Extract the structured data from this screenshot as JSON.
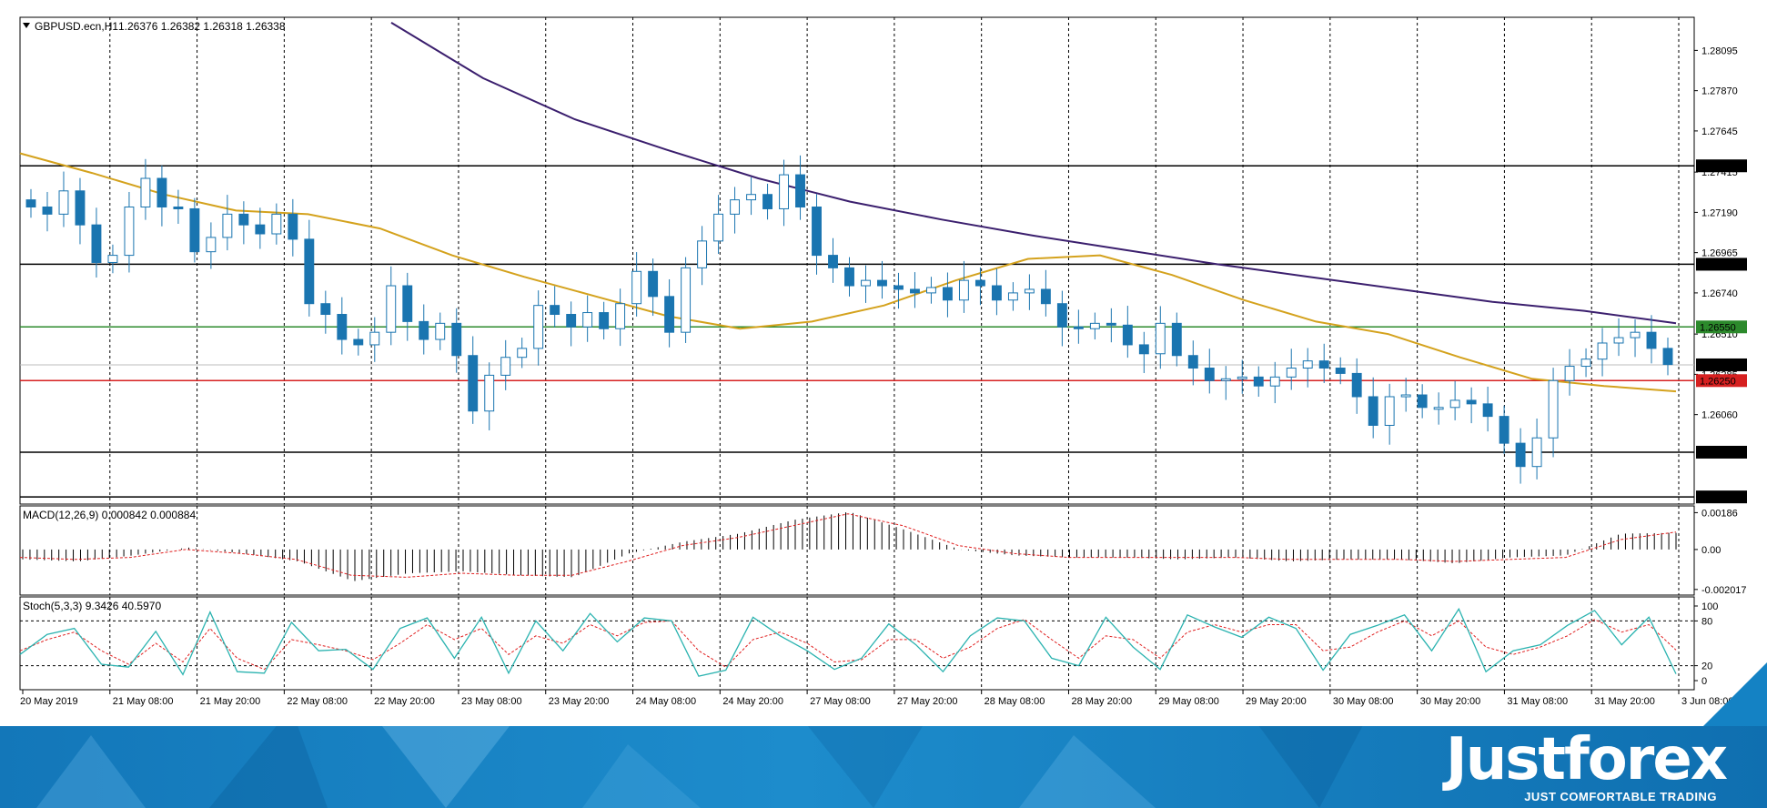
{
  "header": {
    "symbol": "GBPUSD.ecn,H1",
    "ohlc": "1.26376 1.26382 1.26318 1.26338"
  },
  "macd_header": {
    "label": "MACD(12,26,9) 0.000842 0.000884"
  },
  "stoch_header": {
    "label": "Stoch(5,3,3) 9.3426 40.5970"
  },
  "colors": {
    "candle": "#1a75b0",
    "ma_fast": "#d4a21d",
    "ma_slow": "#3b1f6e",
    "level_red": "#d62020",
    "level_green": "#2c8a2c",
    "level_black": "#000000",
    "stoch_main": "#2bb3b0",
    "stoch_signal": "#e02020"
  },
  "chart_data": [
    {
      "type": "candlestick",
      "title": "GBPUSD.ecn,H1",
      "y_axis_ticks": [
        "1.28095",
        "1.27870",
        "1.27645",
        "1.27415",
        "1.27190",
        "1.26965",
        "1.26740",
        "1.26510",
        "1.26285",
        "1.26060"
      ],
      "ylim": [
        1.2556,
        1.2828
      ],
      "price_levels": [
        {
          "value": "1.27450",
          "color": "black"
        },
        {
          "value": "1.26900",
          "color": "black"
        },
        {
          "value": "1.26550",
          "color": "green"
        },
        {
          "value": "1.26250",
          "color": "red"
        },
        {
          "value": "1.25850",
          "color": "black"
        },
        {
          "value": "1.25600",
          "color": "black"
        }
      ],
      "current_price": "1.26338",
      "x_axis_labels": [
        "20 May 2019",
        "21 May 08:00",
        "21 May 20:00",
        "22 May 08:00",
        "22 May 20:00",
        "23 May 08:00",
        "23 May 20:00",
        "24 May 08:00",
        "24 May 20:00",
        "27 May 08:00",
        "27 May 20:00",
        "28 May 08:00",
        "28 May 20:00",
        "29 May 08:00",
        "29 May 20:00",
        "30 May 08:00",
        "30 May 20:00",
        "31 May 08:00",
        "31 May 20:00",
        "3 Jun 08:00"
      ],
      "close_path": [
        1.2722,
        1.2718,
        1.2731,
        1.2712,
        1.2691,
        1.2695,
        1.2722,
        1.2738,
        1.2722,
        1.2721,
        1.2697,
        1.2705,
        1.2718,
        1.2712,
        1.2707,
        1.2718,
        1.2704,
        1.2668,
        1.2662,
        1.2648,
        1.2645,
        1.2652,
        1.2678,
        1.2658,
        1.2648,
        1.2657,
        1.2639,
        1.2608,
        1.2628,
        1.2638,
        1.2643,
        1.2667,
        1.2662,
        1.2655,
        1.2663,
        1.2654,
        1.2668,
        1.2686,
        1.2672,
        1.2652,
        1.2688,
        1.2703,
        1.2718,
        1.2726,
        1.2729,
        1.2721,
        1.274,
        1.2722,
        1.2695,
        1.2688,
        1.2678,
        1.2681,
        1.2678,
        1.2676,
        1.2674,
        1.2677,
        1.267,
        1.2681,
        1.2678,
        1.267,
        1.2674,
        1.2676,
        1.2668,
        1.2655,
        1.2654,
        1.2657,
        1.2656,
        1.2645,
        1.264,
        1.2657,
        1.2639,
        1.2632,
        1.2625,
        1.2626,
        1.2627,
        1.2622,
        1.2627,
        1.2632,
        1.2636,
        1.2632,
        1.2629,
        1.2616,
        1.26,
        1.2616,
        1.2617,
        1.261,
        1.261,
        1.2614,
        1.2612,
        1.2605,
        1.259,
        1.2577,
        1.2593,
        1.2625,
        1.2633,
        1.2637,
        1.2646,
        1.2649,
        1.2652,
        1.2643,
        1.2634
      ],
      "ma_fast_path": [
        1.2752,
        1.2741,
        1.2729,
        1.272,
        1.2718,
        1.271,
        1.2695,
        1.2683,
        1.2672,
        1.2661,
        1.2654,
        1.2658,
        1.2667,
        1.2681,
        1.2693,
        1.2695,
        1.2684,
        1.267,
        1.2658,
        1.2651,
        1.2638,
        1.2626,
        1.2622,
        1.2619
      ],
      "ma_slow_path": [
        1.2825,
        1.2794,
        1.2771,
        1.2754,
        1.2738,
        1.2725,
        1.2715,
        1.2706,
        1.2698,
        1.269,
        1.2683,
        1.2676,
        1.2669,
        1.2664,
        1.2657
      ]
    },
    {
      "type": "histogram",
      "title": "MACD(12,26,9) 0.000842 0.000884",
      "y_axis_ticks": [
        "0.00186",
        "0.00",
        "-0.002017"
      ],
      "ylim": [
        -0.0023,
        0.0022
      ],
      "values_path": [
        -0.0005,
        -0.0006,
        -0.0003,
        0.0001,
        -0.0002,
        -0.0006,
        -0.0016,
        -0.0012,
        -0.0011,
        -0.0013,
        -0.0014,
        -0.0002,
        0.0004,
        0.0008,
        0.0015,
        0.0019,
        0.001,
        0.0,
        -0.0003,
        -0.0004,
        -0.0004,
        -0.0005,
        -0.0004,
        -0.0006,
        -0.0005,
        -0.0005,
        -0.0007,
        -0.0004,
        -0.0003,
        0.0008,
        0.00084
      ],
      "signal_path": [
        -0.0004,
        -0.0005,
        -0.0004,
        0.0,
        -0.0002,
        -0.0005,
        -0.0013,
        -0.0014,
        -0.0012,
        -0.0013,
        -0.0013,
        -0.0006,
        0.0002,
        0.0006,
        0.0012,
        0.0018,
        0.0012,
        0.0002,
        -0.0002,
        -0.0004,
        -0.0004,
        -0.0004,
        -0.0004,
        -0.0005,
        -0.0005,
        -0.0005,
        -0.0006,
        -0.0005,
        -0.0004,
        0.0005,
        0.00088
      ]
    },
    {
      "type": "line",
      "title": "Stoch(5,3,3) 9.3426 40.5970",
      "y_axis_ticks": [
        "100",
        "80",
        "20",
        "0"
      ],
      "ylim": [
        0,
        100
      ],
      "levels": [
        80,
        20
      ],
      "main_path": [
        35,
        62,
        70,
        22,
        18,
        66,
        8,
        92,
        12,
        10,
        78,
        40,
        42,
        15,
        70,
        84,
        30,
        85,
        10,
        80,
        40,
        90,
        52,
        84,
        80,
        6,
        14,
        85,
        60,
        40,
        15,
        30,
        76,
        48,
        12,
        60,
        84,
        80,
        30,
        20,
        85,
        45,
        15,
        88,
        72,
        58,
        85,
        70,
        14,
        62,
        74,
        88,
        40,
        96,
        12,
        40,
        48,
        74,
        94,
        48,
        85,
        9
      ],
      "signal_path": [
        40,
        55,
        65,
        40,
        22,
        50,
        25,
        70,
        30,
        15,
        55,
        48,
        40,
        28,
        50,
        75,
        55,
        70,
        35,
        60,
        50,
        75,
        60,
        78,
        80,
        40,
        18,
        55,
        65,
        50,
        25,
        28,
        55,
        55,
        30,
        45,
        70,
        82,
        55,
        30,
        60,
        55,
        30,
        65,
        75,
        65,
        75,
        75,
        40,
        45,
        65,
        80,
        60,
        80,
        45,
        35,
        45,
        60,
        82,
        65,
        75,
        41
      ]
    }
  ],
  "footer": {
    "brand": "Justforex",
    "tagline": "JUST COMFORTABLE TRADING"
  }
}
